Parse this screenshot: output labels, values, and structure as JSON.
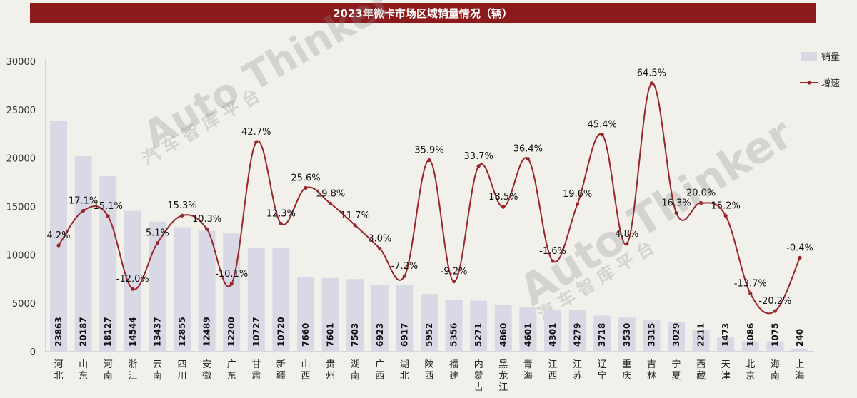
{
  "title": "2023年微卡市场区域销量情况（辆）",
  "watermark": {
    "brand": "Auto Thinker",
    "sub": "汽 车 智 库 平 台"
  },
  "colors": {
    "bar": "#d9d9e6",
    "line": "#98262b",
    "title_bg": "#8c1a1d",
    "background": "#f1f0eb"
  },
  "chart_data": {
    "type": "bar",
    "title": "2023年微卡市场区域销量情况（辆）",
    "categories": [
      "河北",
      "山东",
      "河南",
      "浙江",
      "云南",
      "四川",
      "安徽",
      "广东",
      "甘肃",
      "新疆",
      "山西",
      "贵州",
      "湖南",
      "广西",
      "湖北",
      "陕西",
      "福建",
      "内蒙古",
      "黑龙江",
      "青海",
      "江西",
      "江苏",
      "辽宁",
      "重庆",
      "吉林",
      "宁夏",
      "西藏",
      "天津",
      "北京",
      "海南",
      "上海"
    ],
    "series": [
      {
        "name": "销量",
        "type": "bar",
        "axis": "left",
        "values": [
          23863,
          20187,
          18127,
          14544,
          13437,
          12855,
          12489,
          12200,
          10727,
          10720,
          7660,
          7601,
          7503,
          6923,
          6917,
          5952,
          5356,
          5271,
          4860,
          4601,
          4301,
          4279,
          3718,
          3530,
          3315,
          3029,
          2211,
          1473,
          1086,
          1075,
          240
        ]
      },
      {
        "name": "增速",
        "type": "line",
        "axis": "hidden",
        "values": [
          4.2,
          17.1,
          15.1,
          -12.0,
          5.1,
          15.3,
          10.3,
          -10.1,
          42.7,
          12.3,
          25.6,
          19.8,
          11.7,
          3.0,
          -7.2,
          35.9,
          -9.2,
          33.7,
          18.5,
          36.4,
          -1.6,
          19.6,
          45.4,
          4.8,
          64.5,
          16.3,
          20.0,
          15.2,
          -13.7,
          -20.2,
          -0.4
        ],
        "labels": [
          "4.2%",
          "17.1%",
          "15.1%",
          "-12.0%",
          "5.1%",
          "15.3%",
          "10.3%",
          "-10.1%",
          "42.7%",
          "12.3%",
          "25.6%",
          "19.8%",
          "11.7%",
          "3.0%",
          "-7.2%",
          "35.9%",
          "-9.2%",
          "33.7%",
          "18.5%",
          "36.4%",
          "-1.6%",
          "19.6%",
          "45.4%",
          "4.8%",
          "64.5%",
          "16.3%",
          "20.0%",
          "15.2%",
          "-13.7%",
          "-20.2%",
          "-0.4%"
        ]
      }
    ],
    "yticks": [
      "0",
      "5000",
      "10000",
      "15000",
      "20000",
      "25000",
      "30000"
    ],
    "ylim": [
      0,
      30000
    ],
    "grid": false,
    "legend": {
      "position": "top-right",
      "entries": [
        "销量",
        "增速"
      ]
    }
  }
}
